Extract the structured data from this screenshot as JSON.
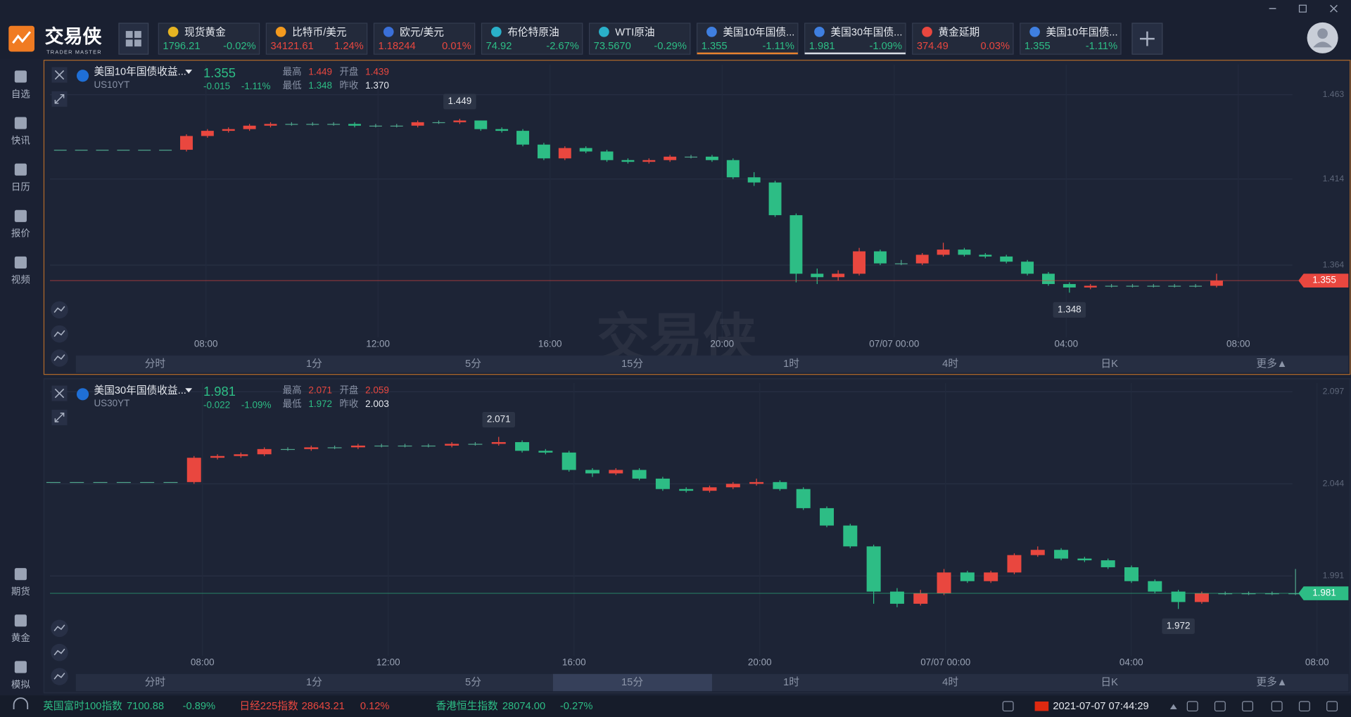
{
  "logo": {
    "name": "交易侠",
    "sub": "TRADER MASTER"
  },
  "tickers": [
    {
      "name": "现货黄金",
      "price": "1796.21",
      "change": "-0.02%"
    },
    {
      "name": "比特币/美元",
      "price": "34121.61",
      "change": "1.24%"
    },
    {
      "name": "欧元/美元",
      "price": "1.18244",
      "change": "0.01%"
    },
    {
      "name": "布伦特原油",
      "price": "74.92",
      "change": "-2.67%"
    },
    {
      "name": "WTI原油",
      "price": "73.5670",
      "change": "-0.29%"
    },
    {
      "name": "美国10年国债...",
      "price": "1.355",
      "change": "-1.11%"
    },
    {
      "name": "美国30年国债...",
      "price": "1.981",
      "change": "-1.09%"
    },
    {
      "name": "黄金延期",
      "price": "374.49",
      "change": "0.03%"
    },
    {
      "name": "美国10年国债...",
      "price": "1.355",
      "change": "-1.11%"
    }
  ],
  "sidebar": [
    "自选",
    "快讯",
    "日历",
    "报价",
    "视频"
  ],
  "sidebar_bottom": [
    "期货",
    "黄金",
    "模拟"
  ],
  "stat_labels": [
    "最高",
    "开盘",
    "最低",
    "昨收"
  ],
  "tabs": [
    "分时",
    "1分",
    "5分",
    "15分",
    "1时",
    "4时",
    "日K",
    "更多▲"
  ],
  "watermark": {
    "main": "交易侠",
    "sub": "TRADER MASTER"
  },
  "charts": [
    {
      "name": "美国10年国债收益...",
      "code": "US10YT",
      "last": 1.355,
      "change": "-0.015",
      "change_pct": "-1.11%",
      "high": 1.449,
      "open": 1.439,
      "low": 1.348,
      "prev": "1.370",
      "ylim": [
        1.322,
        1.4805
      ],
      "yticks": [
        1.463,
        1.414,
        1.364
      ],
      "xlabels": [
        "08:00",
        "12:00",
        "16:00",
        "20:00",
        "07/07 00:00",
        "04:00",
        "08:00"
      ],
      "candles": [
        [
          1.431,
          1.431,
          1.431,
          1.431
        ],
        [
          1.431,
          1.431,
          1.431,
          1.431
        ],
        [
          1.431,
          1.431,
          1.431,
          1.431
        ],
        [
          1.431,
          1.431,
          1.431,
          1.431
        ],
        [
          1.431,
          1.431,
          1.431,
          1.431
        ],
        [
          1.431,
          1.431,
          1.431,
          1.431
        ],
        [
          1.431,
          1.44,
          1.43,
          1.439
        ],
        [
          1.439,
          1.443,
          1.438,
          1.442
        ],
        [
          1.442,
          1.444,
          1.441,
          1.443
        ],
        [
          1.443,
          1.446,
          1.442,
          1.445
        ],
        [
          1.445,
          1.447,
          1.444,
          1.446
        ],
        [
          1.446,
          1.447,
          1.445,
          1.446
        ],
        [
          1.446,
          1.447,
          1.445,
          1.446
        ],
        [
          1.446,
          1.447,
          1.445,
          1.446
        ],
        [
          1.446,
          1.447,
          1.444,
          1.445
        ],
        [
          1.445,
          1.446,
          1.444,
          1.445
        ],
        [
          1.445,
          1.446,
          1.444,
          1.445
        ],
        [
          1.445,
          1.448,
          1.444,
          1.447
        ],
        [
          1.447,
          1.448,
          1.446,
          1.447
        ],
        [
          1.447,
          1.449,
          1.446,
          1.448
        ],
        [
          1.448,
          1.448,
          1.442,
          1.443
        ],
        [
          1.443,
          1.444,
          1.441,
          1.442
        ],
        [
          1.442,
          1.443,
          1.433,
          1.434
        ],
        [
          1.434,
          1.435,
          1.425,
          1.426
        ],
        [
          1.426,
          1.433,
          1.425,
          1.432
        ],
        [
          1.432,
          1.433,
          1.429,
          1.43
        ],
        [
          1.43,
          1.431,
          1.424,
          1.425
        ],
        [
          1.425,
          1.426,
          1.423,
          1.424
        ],
        [
          1.424,
          1.426,
          1.423,
          1.425
        ],
        [
          1.425,
          1.428,
          1.424,
          1.427
        ],
        [
          1.427,
          1.428,
          1.426,
          1.427
        ],
        [
          1.427,
          1.428,
          1.424,
          1.425
        ],
        [
          1.425,
          1.426,
          1.414,
          1.415
        ],
        [
          1.415,
          1.418,
          1.41,
          1.412
        ],
        [
          1.412,
          1.413,
          1.392,
          1.393
        ],
        [
          1.393,
          1.394,
          1.354,
          1.359
        ],
        [
          1.359,
          1.362,
          1.353,
          1.357
        ],
        [
          1.357,
          1.361,
          1.355,
          1.359
        ],
        [
          1.359,
          1.374,
          1.358,
          1.372
        ],
        [
          1.372,
          1.373,
          1.364,
          1.365
        ],
        [
          1.365,
          1.367,
          1.364,
          1.365
        ],
        [
          1.365,
          1.371,
          1.364,
          1.37
        ],
        [
          1.37,
          1.377,
          1.369,
          1.373
        ],
        [
          1.373,
          1.374,
          1.369,
          1.37
        ],
        [
          1.37,
          1.371,
          1.368,
          1.369
        ],
        [
          1.369,
          1.37,
          1.365,
          1.366
        ],
        [
          1.366,
          1.367,
          1.358,
          1.359
        ],
        [
          1.359,
          1.36,
          1.352,
          1.353
        ],
        [
          1.353,
          1.354,
          1.348,
          1.351
        ],
        [
          1.351,
          1.353,
          1.35,
          1.352
        ],
        [
          1.352,
          1.353,
          1.351,
          1.352
        ],
        [
          1.352,
          1.353,
          1.351,
          1.352
        ],
        [
          1.352,
          1.353,
          1.351,
          1.352
        ],
        [
          1.352,
          1.353,
          1.351,
          1.352
        ],
        [
          1.352,
          1.353,
          1.351,
          1.352
        ],
        [
          1.352,
          1.359,
          1.351,
          1.355
        ]
      ]
    },
    {
      "name": "美国30年国债收益...",
      "code": "US30YT",
      "last": 1.981,
      "change": "-0.022",
      "change_pct": "-1.09%",
      "high": 2.071,
      "open": 2.059,
      "low": 1.972,
      "prev": "2.003",
      "ylim": [
        1.945,
        2.102
      ],
      "yticks": [
        2.097,
        2.044,
        1.991
      ],
      "xlabels": [
        "08:00",
        "12:00",
        "16:00",
        "20:00",
        "07/07 00:00",
        "04:00",
        "08:00"
      ],
      "selected_tab": 3,
      "candles": [
        [
          2.045,
          2.045,
          2.045,
          2.045
        ],
        [
          2.045,
          2.045,
          2.045,
          2.045
        ],
        [
          2.045,
          2.045,
          2.045,
          2.045
        ],
        [
          2.045,
          2.045,
          2.045,
          2.045
        ],
        [
          2.045,
          2.045,
          2.045,
          2.045
        ],
        [
          2.045,
          2.045,
          2.045,
          2.045
        ],
        [
          2.045,
          2.06,
          2.044,
          2.059
        ],
        [
          2.059,
          2.061,
          2.058,
          2.06
        ],
        [
          2.06,
          2.062,
          2.059,
          2.061
        ],
        [
          2.061,
          2.065,
          2.06,
          2.064
        ],
        [
          2.064,
          2.065,
          2.063,
          2.064
        ],
        [
          2.064,
          2.066,
          2.063,
          2.065
        ],
        [
          2.065,
          2.066,
          2.064,
          2.065
        ],
        [
          2.065,
          2.067,
          2.064,
          2.066
        ],
        [
          2.066,
          2.067,
          2.065,
          2.066
        ],
        [
          2.066,
          2.067,
          2.065,
          2.066
        ],
        [
          2.066,
          2.067,
          2.065,
          2.066
        ],
        [
          2.066,
          2.068,
          2.065,
          2.067
        ],
        [
          2.067,
          2.068,
          2.066,
          2.067
        ],
        [
          2.067,
          2.071,
          2.066,
          2.068
        ],
        [
          2.068,
          2.069,
          2.062,
          2.063
        ],
        [
          2.063,
          2.064,
          2.061,
          2.062
        ],
        [
          2.062,
          2.063,
          2.051,
          2.052
        ],
        [
          2.052,
          2.053,
          2.048,
          2.05
        ],
        [
          2.05,
          2.053,
          2.049,
          2.052
        ],
        [
          2.052,
          2.053,
          2.046,
          2.047
        ],
        [
          2.047,
          2.048,
          2.04,
          2.041
        ],
        [
          2.041,
          2.042,
          2.039,
          2.04
        ],
        [
          2.04,
          2.043,
          2.039,
          2.042
        ],
        [
          2.042,
          2.045,
          2.041,
          2.044
        ],
        [
          2.044,
          2.047,
          2.043,
          2.045
        ],
        [
          2.045,
          2.046,
          2.04,
          2.041
        ],
        [
          2.041,
          2.042,
          2.029,
          2.03
        ],
        [
          2.03,
          2.031,
          2.019,
          2.02
        ],
        [
          2.02,
          2.021,
          2.007,
          2.008
        ],
        [
          2.008,
          2.009,
          1.975,
          1.982
        ],
        [
          1.982,
          1.984,
          1.973,
          1.975
        ],
        [
          1.975,
          1.983,
          1.974,
          1.981
        ],
        [
          1.981,
          1.995,
          1.98,
          1.993
        ],
        [
          1.993,
          1.994,
          1.987,
          1.988
        ],
        [
          1.988,
          1.994,
          1.987,
          1.993
        ],
        [
          1.993,
          2.004,
          1.992,
          2.003
        ],
        [
          2.003,
          2.008,
          2.002,
          2.006
        ],
        [
          2.006,
          2.007,
          2.0,
          2.001
        ],
        [
          2.001,
          2.002,
          1.999,
          2.0
        ],
        [
          2.0,
          2.001,
          1.995,
          1.996
        ],
        [
          1.996,
          1.997,
          1.987,
          1.988
        ],
        [
          1.988,
          1.989,
          1.981,
          1.982
        ],
        [
          1.982,
          1.983,
          1.972,
          1.976
        ],
        [
          1.976,
          1.982,
          1.975,
          1.981
        ],
        [
          1.981,
          1.982,
          1.98,
          1.981
        ],
        [
          1.981,
          1.982,
          1.98,
          1.981
        ],
        [
          1.981,
          1.982,
          1.98,
          1.981
        ],
        [
          1.981,
          1.995,
          1.98,
          1.981
        ]
      ]
    }
  ],
  "footer": {
    "indices": [
      {
        "name": "英国富时100指数",
        "price": "7100.88",
        "change": "-0.89%"
      },
      {
        "name": "日经225指数",
        "price": "28643.21",
        "change": "0.12%"
      },
      {
        "name": "香港恒生指数",
        "price": "28074.00",
        "change": "-0.27%"
      }
    ],
    "time": "2021-07-07 07:44:29"
  }
}
